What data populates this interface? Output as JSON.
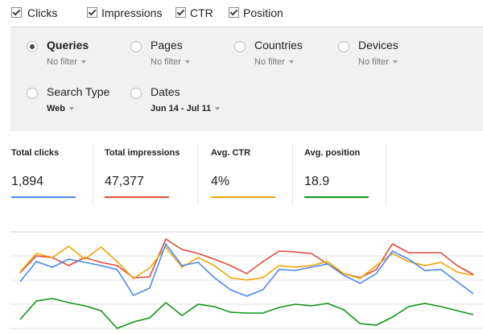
{
  "checkboxes": [
    "Clicks",
    "Impressions",
    "CTR",
    "Position"
  ],
  "filters": [
    {
      "label": "Queries",
      "value": "No filter",
      "selected": true
    },
    {
      "label": "Pages",
      "value": "No filter",
      "selected": false
    },
    {
      "label": "Countries",
      "value": "No filter",
      "selected": false
    },
    {
      "label": "Devices",
      "value": "No filter",
      "selected": false
    },
    {
      "label": "Search Type",
      "value": "Web",
      "selected": false
    },
    {
      "label": "Dates",
      "value": "Jun 14 - Jul 11",
      "selected": false
    }
  ],
  "metrics": [
    {
      "label": "Total clicks",
      "value": "1,894"
    },
    {
      "label": "Total impressions",
      "value": "47,377"
    },
    {
      "label": "Avg. CTR",
      "value": "4%"
    },
    {
      "label": "Avg. position",
      "value": "18.9"
    }
  ],
  "chart_data": {
    "type": "line",
    "ylim": [
      0,
      130
    ],
    "series": [
      {
        "color": "#dd4b39",
        "values": [
          76,
          97,
          95,
          85,
          95,
          89,
          85,
          70,
          71,
          118,
          105,
          100,
          93,
          85,
          75,
          90,
          103,
          102,
          100,
          87,
          75,
          70,
          80,
          112,
          101,
          101,
          101,
          85,
          74
        ]
      },
      {
        "color": "#f4a300",
        "values": [
          77,
          100,
          95,
          109,
          93,
          108,
          90,
          69,
          82,
          108,
          83,
          95,
          85,
          70,
          67,
          70,
          85,
          83,
          85,
          90,
          75,
          69,
          85,
          100,
          90,
          85,
          89,
          77,
          73
        ]
      },
      {
        "color": "#4a8af4",
        "values": [
          65,
          90,
          83,
          93,
          89,
          85,
          80,
          48,
          57,
          112,
          85,
          89,
          70,
          55,
          47,
          55,
          80,
          79,
          83,
          87,
          73,
          63,
          75,
          103,
          93,
          79,
          80,
          65,
          50
        ]
      },
      {
        "color": "#109618",
        "values": [
          18,
          41,
          44,
          39,
          35,
          29,
          7,
          15,
          20,
          39,
          23,
          37,
          34,
          27,
          26,
          26,
          33,
          37,
          35,
          38,
          30,
          13,
          11,
          21,
          34,
          38,
          34,
          29,
          24
        ]
      }
    ]
  }
}
